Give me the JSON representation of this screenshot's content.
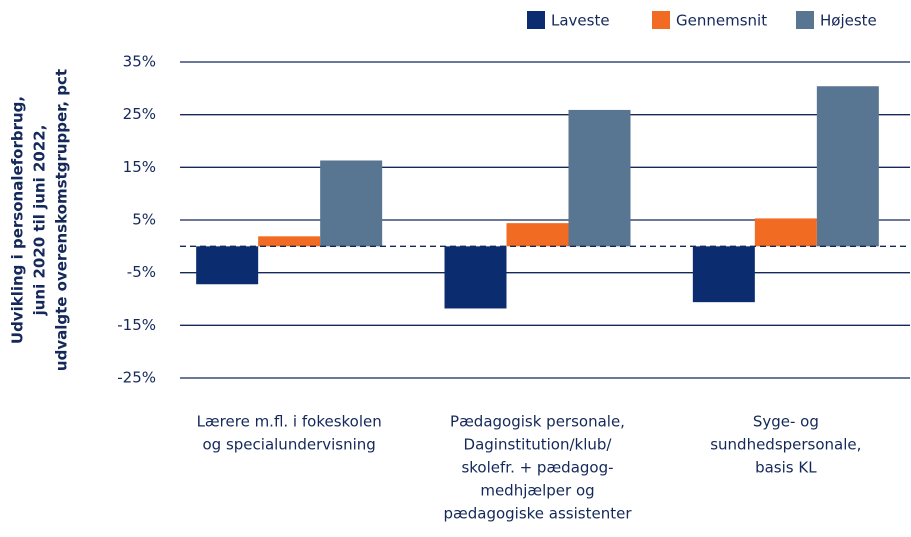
{
  "chart_data": {
    "type": "bar",
    "ylabel": [
      "Udvikling i personaleforbrug,",
      "juni 2020 til juni 2022,",
      "udvalgte overenskomstgrupper, pct"
    ],
    "categories": [
      [
        "Lærere m.fl. i fokeskolen",
        "og specialundervisning"
      ],
      [
        "Pædagogisk personale,",
        "Daginstitution/klub/",
        "skolefr. + pædagog-",
        "medhjælper og",
        "pædagogiske assistenter"
      ],
      [
        "Syge- og",
        "sundhedspersonale,",
        "basis KL"
      ]
    ],
    "series": [
      {
        "name": "Laveste",
        "color": "#0b2d6f",
        "values": [
          -7.2,
          -11.8,
          -10.6
        ]
      },
      {
        "name": "Gennemsnit",
        "color": "#f26b22",
        "values": [
          1.9,
          4.4,
          5.3
        ]
      },
      {
        "name": "Højeste",
        "color": "#587591",
        "values": [
          16.3,
          25.9,
          30.4
        ]
      }
    ],
    "ylim": [
      -25,
      35
    ],
    "yticks": [
      {
        "value": -25,
        "label": "-25%"
      },
      {
        "value": -15,
        "label": "-15%"
      },
      {
        "value": -5,
        "label": "-5%"
      },
      {
        "value": 5,
        "label": "5%"
      },
      {
        "value": 15,
        "label": "15%"
      },
      {
        "value": 25,
        "label": "25%"
      },
      {
        "value": 35,
        "label": "35%"
      }
    ],
    "grid": true,
    "legend": "top-right"
  }
}
